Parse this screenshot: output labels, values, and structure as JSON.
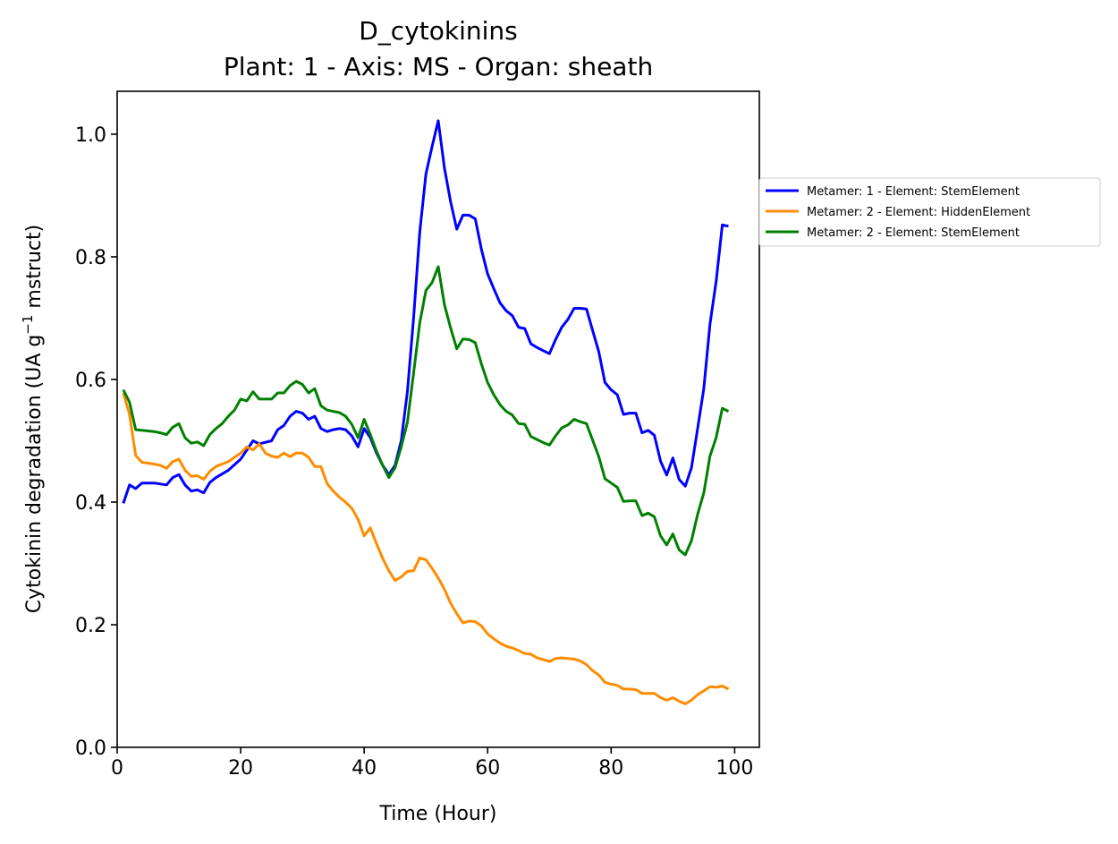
{
  "chart_data": {
    "type": "line",
    "title": "D_cytokinins",
    "subtitle": "Plant: 1 - Axis: MS - Organ: sheath",
    "xlabel": "Time (Hour)",
    "ylabel_main": "Cytokinin degradation (UA g",
    "ylabel_sup": "−1",
    "ylabel_tail": " mstruct)",
    "xlim": [
      0,
      104
    ],
    "ylim": [
      0,
      1.07
    ],
    "x_ticks": [
      0,
      20,
      40,
      60,
      80,
      100
    ],
    "y_ticks": [
      0.0,
      0.2,
      0.4,
      0.6,
      0.8,
      1.0
    ],
    "x_tick_labels": [
      "0",
      "20",
      "40",
      "60",
      "80",
      "100"
    ],
    "y_tick_labels": [
      "0.0",
      "0.2",
      "0.4",
      "0.6",
      "0.8",
      "1.0"
    ],
    "grid": false,
    "legend_position": "outside-right-top",
    "series": [
      {
        "name": "Metamer: 1 - Element: StemElement",
        "color": "#0000ff",
        "points": [
          [
            1,
            0.398
          ],
          [
            2,
            0.428
          ],
          [
            3,
            0.422
          ],
          [
            4,
            0.431
          ],
          [
            6,
            0.431
          ],
          [
            8,
            0.428
          ],
          [
            9,
            0.44
          ],
          [
            10,
            0.445
          ],
          [
            11,
            0.428
          ],
          [
            12,
            0.418
          ],
          [
            13,
            0.42
          ],
          [
            14,
            0.415
          ],
          [
            15,
            0.432
          ],
          [
            16,
            0.44
          ],
          [
            18,
            0.452
          ],
          [
            20,
            0.47
          ],
          [
            21,
            0.485
          ],
          [
            22,
            0.5
          ],
          [
            23,
            0.495
          ],
          [
            25,
            0.5
          ],
          [
            26,
            0.518
          ],
          [
            27,
            0.525
          ],
          [
            28,
            0.54
          ],
          [
            29,
            0.548
          ],
          [
            30,
            0.545
          ],
          [
            31,
            0.535
          ],
          [
            32,
            0.54
          ],
          [
            33,
            0.52
          ],
          [
            34,
            0.515
          ],
          [
            35,
            0.518
          ],
          [
            36,
            0.52
          ],
          [
            37,
            0.518
          ],
          [
            38,
            0.508
          ],
          [
            39,
            0.49
          ],
          [
            40,
            0.52
          ],
          [
            41,
            0.505
          ],
          [
            42,
            0.48
          ],
          [
            43,
            0.46
          ],
          [
            44,
            0.445
          ],
          [
            45,
            0.46
          ],
          [
            46,
            0.5
          ],
          [
            47,
            0.58
          ],
          [
            48,
            0.7
          ],
          [
            49,
            0.84
          ],
          [
            50,
            0.935
          ],
          [
            51,
            0.98
          ],
          [
            52,
            1.022
          ],
          [
            53,
            0.945
          ],
          [
            54,
            0.89
          ],
          [
            55,
            0.845
          ],
          [
            56,
            0.868
          ],
          [
            57,
            0.868
          ],
          [
            58,
            0.862
          ],
          [
            59,
            0.812
          ],
          [
            60,
            0.772
          ],
          [
            61,
            0.748
          ],
          [
            62,
            0.725
          ],
          [
            63,
            0.712
          ],
          [
            64,
            0.704
          ],
          [
            65,
            0.685
          ],
          [
            66,
            0.683
          ],
          [
            67,
            0.658
          ],
          [
            68,
            0.652
          ],
          [
            69,
            0.647
          ],
          [
            70,
            0.642
          ],
          [
            71,
            0.665
          ],
          [
            72,
            0.685
          ],
          [
            73,
            0.698
          ],
          [
            74,
            0.716
          ],
          [
            75,
            0.716
          ],
          [
            76,
            0.715
          ],
          [
            77,
            0.68
          ],
          [
            78,
            0.645
          ],
          [
            79,
            0.595
          ],
          [
            80,
            0.583
          ],
          [
            81,
            0.575
          ],
          [
            82,
            0.543
          ],
          [
            83,
            0.545
          ],
          [
            84,
            0.545
          ],
          [
            85,
            0.513
          ],
          [
            86,
            0.517
          ],
          [
            87,
            0.509
          ],
          [
            88,
            0.467
          ],
          [
            89,
            0.444
          ],
          [
            90,
            0.472
          ],
          [
            91,
            0.437
          ],
          [
            92,
            0.426
          ],
          [
            93,
            0.456
          ],
          [
            94,
            0.52
          ],
          [
            95,
            0.585
          ],
          [
            96,
            0.69
          ],
          [
            97,
            0.76
          ],
          [
            98,
            0.852
          ],
          [
            99,
            0.85
          ]
        ]
      },
      {
        "name": "Metamer: 2 - Element: HiddenElement",
        "color": "#ff8c00",
        "points": [
          [
            1,
            0.578
          ],
          [
            2,
            0.543
          ],
          [
            3,
            0.476
          ],
          [
            4,
            0.465
          ],
          [
            6,
            0.462
          ],
          [
            7,
            0.46
          ],
          [
            8,
            0.455
          ],
          [
            9,
            0.466
          ],
          [
            10,
            0.47
          ],
          [
            11,
            0.452
          ],
          [
            12,
            0.442
          ],
          [
            13,
            0.443
          ],
          [
            14,
            0.437
          ],
          [
            15,
            0.45
          ],
          [
            16,
            0.458
          ],
          [
            18,
            0.466
          ],
          [
            20,
            0.48
          ],
          [
            21,
            0.49
          ],
          [
            22,
            0.485
          ],
          [
            23,
            0.495
          ],
          [
            24,
            0.48
          ],
          [
            25,
            0.475
          ],
          [
            26,
            0.473
          ],
          [
            27,
            0.48
          ],
          [
            28,
            0.474
          ],
          [
            29,
            0.48
          ],
          [
            30,
            0.48
          ],
          [
            31,
            0.473
          ],
          [
            32,
            0.458
          ],
          [
            33,
            0.458
          ],
          [
            34,
            0.43
          ],
          [
            35,
            0.418
          ],
          [
            36,
            0.408
          ],
          [
            37,
            0.4
          ],
          [
            38,
            0.39
          ],
          [
            39,
            0.372
          ],
          [
            40,
            0.345
          ],
          [
            41,
            0.358
          ],
          [
            42,
            0.332
          ],
          [
            43,
            0.308
          ],
          [
            44,
            0.288
          ],
          [
            45,
            0.272
          ],
          [
            46,
            0.278
          ],
          [
            47,
            0.287
          ],
          [
            48,
            0.288
          ],
          [
            49,
            0.309
          ],
          [
            50,
            0.306
          ],
          [
            51,
            0.292
          ],
          [
            52,
            0.276
          ],
          [
            53,
            0.258
          ],
          [
            54,
            0.235
          ],
          [
            55,
            0.218
          ],
          [
            56,
            0.203
          ],
          [
            57,
            0.206
          ],
          [
            58,
            0.205
          ],
          [
            59,
            0.198
          ],
          [
            60,
            0.185
          ],
          [
            61,
            0.177
          ],
          [
            62,
            0.17
          ],
          [
            63,
            0.165
          ],
          [
            64,
            0.162
          ],
          [
            65,
            0.158
          ],
          [
            66,
            0.153
          ],
          [
            67,
            0.152
          ],
          [
            68,
            0.146
          ],
          [
            69,
            0.143
          ],
          [
            70,
            0.14
          ],
          [
            71,
            0.145
          ],
          [
            72,
            0.146
          ],
          [
            73,
            0.145
          ],
          [
            74,
            0.144
          ],
          [
            75,
            0.141
          ],
          [
            76,
            0.135
          ],
          [
            77,
            0.125
          ],
          [
            78,
            0.118
          ],
          [
            79,
            0.106
          ],
          [
            80,
            0.103
          ],
          [
            81,
            0.101
          ],
          [
            82,
            0.095
          ],
          [
            83,
            0.095
          ],
          [
            84,
            0.094
          ],
          [
            85,
            0.088
          ],
          [
            86,
            0.088
          ],
          [
            87,
            0.088
          ],
          [
            88,
            0.081
          ],
          [
            89,
            0.077
          ],
          [
            90,
            0.081
          ],
          [
            91,
            0.075
          ],
          [
            92,
            0.071
          ],
          [
            93,
            0.077
          ],
          [
            94,
            0.086
          ],
          [
            95,
            0.092
          ],
          [
            96,
            0.099
          ],
          [
            97,
            0.098
          ],
          [
            98,
            0.1
          ],
          [
            99,
            0.095
          ]
        ]
      },
      {
        "name": "Metamer: 2 - Element: StemElement",
        "color": "#008000",
        "points": [
          [
            1,
            0.583
          ],
          [
            2,
            0.563
          ],
          [
            3,
            0.518
          ],
          [
            4,
            0.517
          ],
          [
            6,
            0.515
          ],
          [
            7,
            0.513
          ],
          [
            8,
            0.51
          ],
          [
            9,
            0.522
          ],
          [
            10,
            0.528
          ],
          [
            11,
            0.505
          ],
          [
            12,
            0.496
          ],
          [
            13,
            0.498
          ],
          [
            14,
            0.492
          ],
          [
            15,
            0.51
          ],
          [
            16,
            0.52
          ],
          [
            17,
            0.528
          ],
          [
            18,
            0.54
          ],
          [
            19,
            0.55
          ],
          [
            20,
            0.568
          ],
          [
            21,
            0.565
          ],
          [
            22,
            0.58
          ],
          [
            23,
            0.568
          ],
          [
            24,
            0.568
          ],
          [
            25,
            0.568
          ],
          [
            26,
            0.578
          ],
          [
            27,
            0.578
          ],
          [
            28,
            0.59
          ],
          [
            29,
            0.597
          ],
          [
            30,
            0.592
          ],
          [
            31,
            0.578
          ],
          [
            32,
            0.585
          ],
          [
            33,
            0.557
          ],
          [
            34,
            0.55
          ],
          [
            35,
            0.548
          ],
          [
            36,
            0.546
          ],
          [
            37,
            0.54
          ],
          [
            38,
            0.527
          ],
          [
            39,
            0.505
          ],
          [
            40,
            0.535
          ],
          [
            41,
            0.51
          ],
          [
            42,
            0.483
          ],
          [
            43,
            0.46
          ],
          [
            44,
            0.44
          ],
          [
            45,
            0.456
          ],
          [
            46,
            0.49
          ],
          [
            47,
            0.53
          ],
          [
            48,
            0.61
          ],
          [
            49,
            0.692
          ],
          [
            50,
            0.745
          ],
          [
            51,
            0.758
          ],
          [
            52,
            0.784
          ],
          [
            53,
            0.722
          ],
          [
            54,
            0.684
          ],
          [
            55,
            0.65
          ],
          [
            56,
            0.666
          ],
          [
            57,
            0.665
          ],
          [
            58,
            0.66
          ],
          [
            59,
            0.625
          ],
          [
            60,
            0.595
          ],
          [
            61,
            0.575
          ],
          [
            62,
            0.559
          ],
          [
            63,
            0.548
          ],
          [
            64,
            0.542
          ],
          [
            65,
            0.528
          ],
          [
            66,
            0.527
          ],
          [
            67,
            0.507
          ],
          [
            68,
            0.502
          ],
          [
            69,
            0.497
          ],
          [
            70,
            0.493
          ],
          [
            71,
            0.508
          ],
          [
            72,
            0.521
          ],
          [
            73,
            0.526
          ],
          [
            74,
            0.535
          ],
          [
            75,
            0.531
          ],
          [
            76,
            0.528
          ],
          [
            77,
            0.501
          ],
          [
            78,
            0.474
          ],
          [
            79,
            0.438
          ],
          [
            80,
            0.431
          ],
          [
            81,
            0.424
          ],
          [
            82,
            0.401
          ],
          [
            83,
            0.402
          ],
          [
            84,
            0.402
          ],
          [
            85,
            0.378
          ],
          [
            86,
            0.382
          ],
          [
            87,
            0.376
          ],
          [
            88,
            0.345
          ],
          [
            89,
            0.33
          ],
          [
            90,
            0.348
          ],
          [
            91,
            0.322
          ],
          [
            92,
            0.314
          ],
          [
            93,
            0.337
          ],
          [
            94,
            0.38
          ],
          [
            95,
            0.415
          ],
          [
            96,
            0.475
          ],
          [
            97,
            0.505
          ],
          [
            98,
            0.553
          ],
          [
            99,
            0.548
          ]
        ]
      }
    ]
  }
}
